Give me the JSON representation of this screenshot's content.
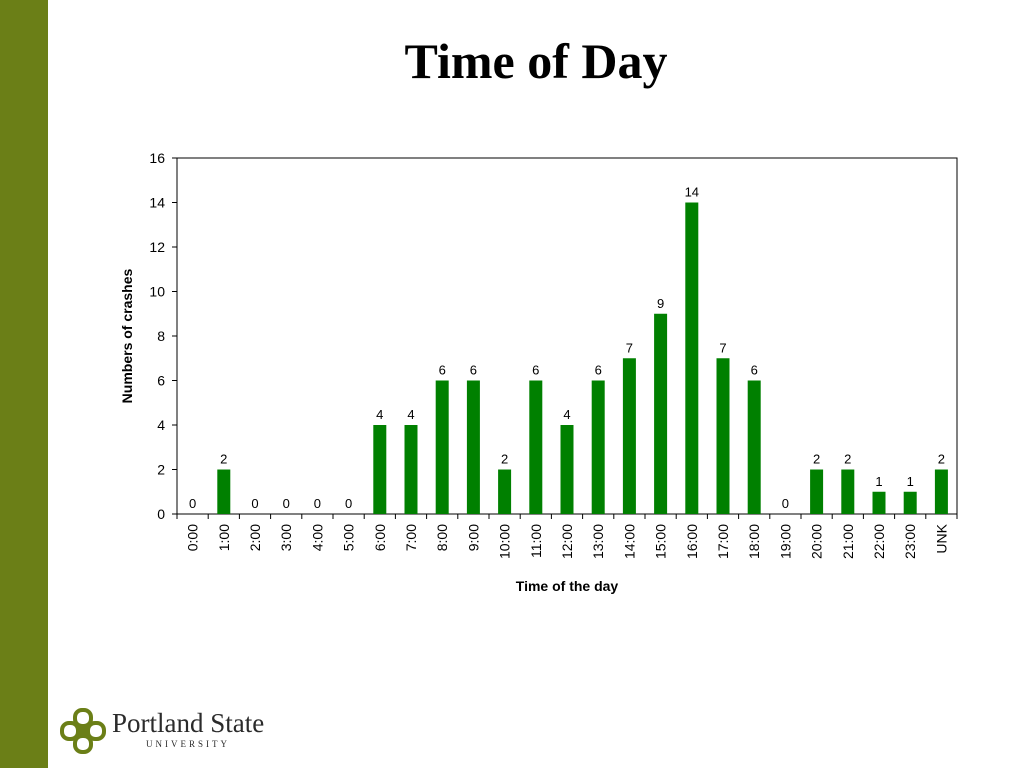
{
  "slide": {
    "title": "Time of Day",
    "accent_color": "#6b7f17",
    "bar_color": "#008000"
  },
  "logo": {
    "name": "Portland State",
    "subtitle": "UNIVERSITY",
    "icon": "psu-interlocking-logo-icon"
  },
  "chart_data": {
    "type": "bar",
    "xlabel": "Time of the day",
    "ylabel": "Numbers of crashes",
    "ylim": [
      0,
      16
    ],
    "yticks": [
      0,
      2,
      4,
      6,
      8,
      10,
      12,
      14,
      16
    ],
    "categories": [
      "0:00",
      "1:00",
      "2:00",
      "3:00",
      "4:00",
      "5:00",
      "6:00",
      "7:00",
      "8:00",
      "9:00",
      "10:00",
      "11:00",
      "12:00",
      "13:00",
      "14:00",
      "15:00",
      "16:00",
      "17:00",
      "18:00",
      "19:00",
      "20:00",
      "21:00",
      "22:00",
      "23:00",
      "UNK"
    ],
    "values": [
      0,
      2,
      0,
      0,
      0,
      0,
      4,
      4,
      6,
      6,
      2,
      6,
      4,
      6,
      7,
      9,
      14,
      7,
      6,
      0,
      2,
      2,
      1,
      1,
      2
    ],
    "grid": false,
    "legend": "none"
  }
}
